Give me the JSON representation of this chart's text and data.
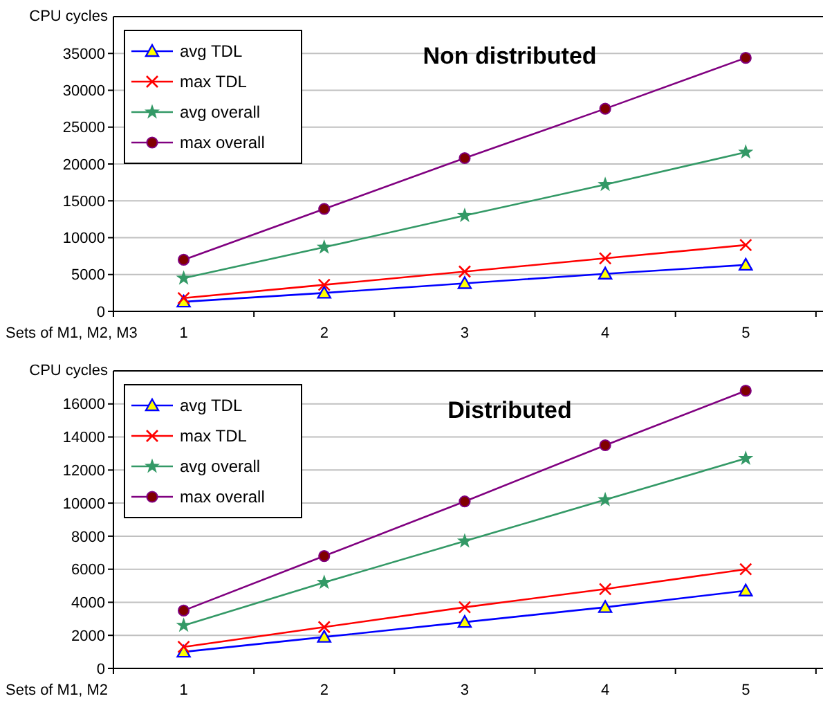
{
  "chart_data": [
    {
      "type": "line",
      "title": "Non distributed",
      "ylabel": "CPU cycles",
      "xlabel": "Sets of M1, M2, M3",
      "categories": [
        "1",
        "2",
        "3",
        "4",
        "5"
      ],
      "ylim": [
        0,
        40000
      ],
      "yticks": [
        0,
        5000,
        10000,
        15000,
        20000,
        25000,
        30000,
        35000
      ],
      "grid": "y",
      "legend": "top left",
      "series": [
        {
          "name": "avg TDL",
          "color": "#0000ff",
          "marker": "triangle",
          "values": [
            1300,
            2500,
            3800,
            5100,
            6300
          ]
        },
        {
          "name": "max TDL",
          "color": "#ff0000",
          "marker": "cross",
          "values": [
            1800,
            3600,
            5400,
            7200,
            9000
          ]
        },
        {
          "name": "avg overall",
          "color": "#339966",
          "marker": "star",
          "values": [
            4500,
            8700,
            13000,
            17200,
            21600
          ]
        },
        {
          "name": "max overall",
          "color": "#800080",
          "marker": "circle",
          "values": [
            7000,
            13900,
            20800,
            27500,
            34400
          ]
        }
      ]
    },
    {
      "type": "line",
      "title": "Distributed",
      "ylabel": "CPU cycles",
      "xlabel": "Sets of M1, M2",
      "categories": [
        "1",
        "2",
        "3",
        "4",
        "5"
      ],
      "ylim": [
        0,
        18000
      ],
      "yticks": [
        0,
        2000,
        4000,
        6000,
        8000,
        10000,
        12000,
        14000,
        16000
      ],
      "grid": "y",
      "legend": "top left",
      "series": [
        {
          "name": "avg TDL",
          "color": "#0000ff",
          "marker": "triangle",
          "values": [
            1000,
            1900,
            2800,
            3700,
            4700
          ]
        },
        {
          "name": "max TDL",
          "color": "#ff0000",
          "marker": "cross",
          "values": [
            1300,
            2500,
            3700,
            4800,
            6000
          ]
        },
        {
          "name": "avg overall",
          "color": "#339966",
          "marker": "star",
          "values": [
            2600,
            5200,
            7700,
            10200,
            12700
          ]
        },
        {
          "name": "max overall",
          "color": "#800080",
          "marker": "circle",
          "values": [
            3500,
            6800,
            10100,
            13500,
            16800
          ]
        }
      ]
    }
  ]
}
